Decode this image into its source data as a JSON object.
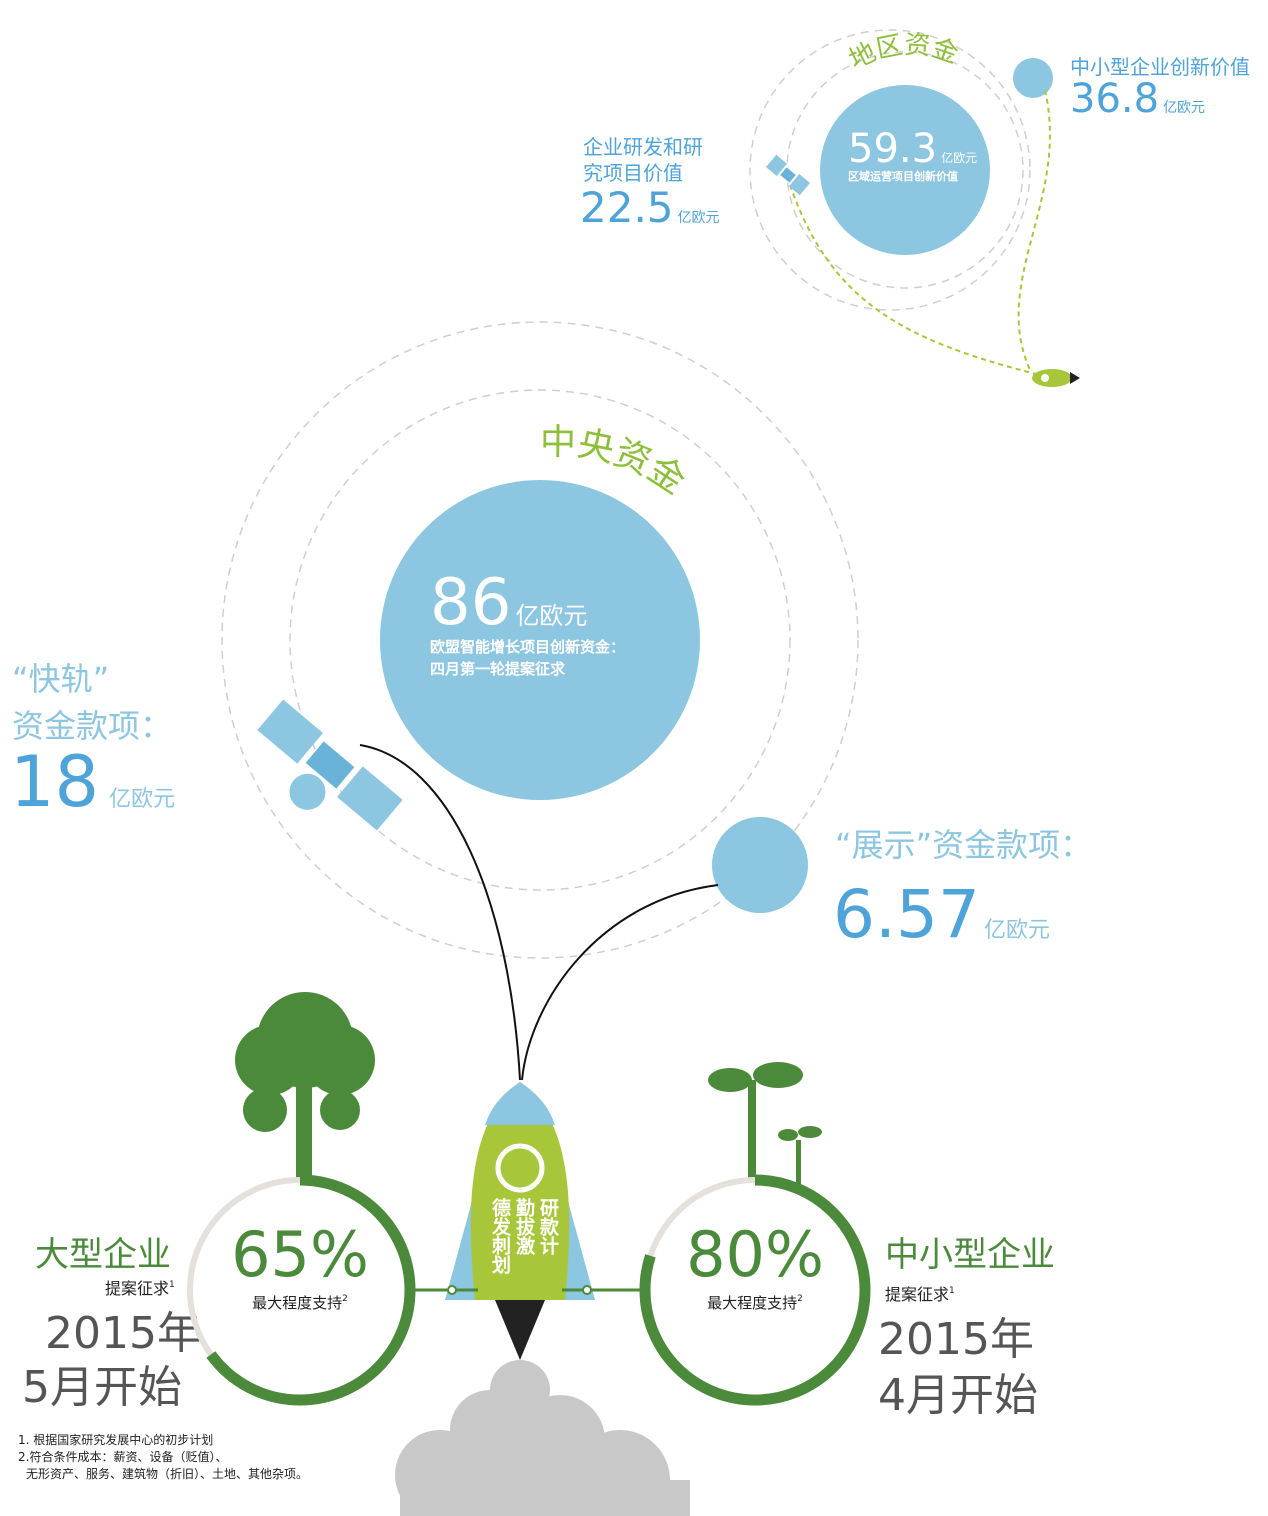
{
  "regional": {
    "title": "地区资金",
    "value": "59.3",
    "unit": "亿欧元",
    "desc": "区域运营项目创新价值"
  },
  "sme_value": {
    "label": "中小型企业创新价值",
    "value": "36.8",
    "unit": "亿欧元"
  },
  "rd_value": {
    "label_lines": [
      "企业研发和研",
      "究项目价值"
    ],
    "value": "22.5",
    "unit": "亿欧元"
  },
  "central": {
    "title": "中央资金",
    "value": "86",
    "unit": "亿欧元",
    "desc_lines": [
      "欧盟智能增长项目创新资金：",
      "四月第一轮提案征求"
    ]
  },
  "fast_track": {
    "label_lines": [
      "“快轨”",
      "资金款项："
    ],
    "value": "18",
    "unit": "亿欧元"
  },
  "showcase": {
    "label": "“展示”资金款项：",
    "value": "6.57",
    "unit": "亿欧元"
  },
  "rocket": {
    "label_columns": [
      "研款计",
      "勤拔激",
      "德发刺划"
    ]
  },
  "large": {
    "title": "大型企业",
    "subtitle": "提案征求",
    "subtitle_sup": "1",
    "support": 65,
    "support_label": "65%",
    "caption": "最大程度支持",
    "caption_sup": "2",
    "start_lines": [
      "2015年",
      "5月开始"
    ]
  },
  "sme": {
    "title": "中小型企业",
    "subtitle": "提案征求",
    "subtitle_sup": "1",
    "support": 80,
    "support_label": "80%",
    "caption": "最大程度支持",
    "caption_sup": "2",
    "start_lines": [
      "2015年",
      "4月开始"
    ]
  },
  "footnotes": [
    "1. 根据国家研究发展中心的初步计划",
    "2.符合条件成本：薪资、设备（贬值）、",
    "无形资产、服务、建筑物（折旧）、土地、其他杂项。"
  ]
}
